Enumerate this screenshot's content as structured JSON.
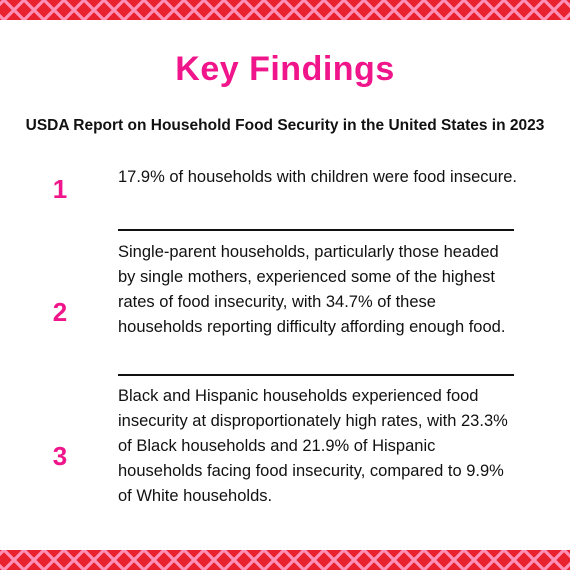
{
  "header": {
    "title": "Key Findings",
    "subtitle": "USDA Report on Household Food Security in the United States in 2023"
  },
  "findings": [
    {
      "number": "1",
      "text": "17.9% of households with children were food insecure."
    },
    {
      "number": "2",
      "text": "Single-parent households, particularly those headed by single mothers, experienced some of the highest rates of food insecurity, with 34.7% of these households reporting difficulty affording enough food."
    },
    {
      "number": "3",
      "text": "Black and Hispanic households experienced food insecurity at disproportionately high rates, with 23.3% of Black households and 21.9% of Hispanic households facing food insecurity, compared to 9.9% of White households."
    }
  ],
  "colors": {
    "accent": "#f0158a",
    "border_red": "#e8222f",
    "border_pink": "#ff8fb4",
    "text": "#111111"
  }
}
